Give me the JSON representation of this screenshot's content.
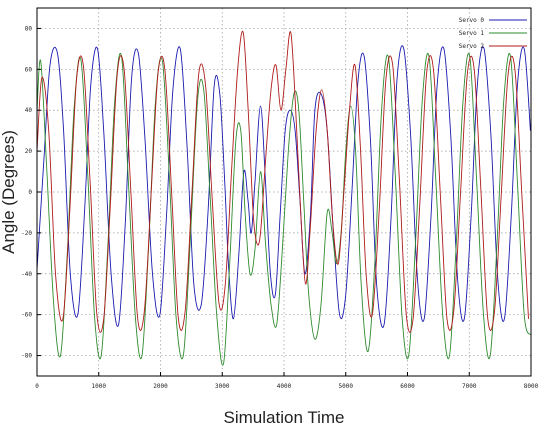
{
  "chart_data": {
    "type": "line",
    "title": "",
    "xlabel": "Simulation Time",
    "ylabel": "Angle (Degrees)",
    "xlim": [
      0,
      8000
    ],
    "ylim": [
      -90,
      90
    ],
    "x_ticks": [
      0,
      1000,
      2000,
      3000,
      4000,
      5000,
      6000,
      7000,
      8000
    ],
    "y_ticks": [
      -80,
      -60,
      -40,
      -20,
      0,
      20,
      40,
      60,
      80
    ],
    "grid": true,
    "legend_position": "top-right",
    "series": [
      {
        "name": "Servo 0",
        "color": "#1a1ab0",
        "points": [
          [
            0,
            -38
          ],
          [
            110,
            15
          ],
          [
            210,
            62
          ],
          [
            330,
            68
          ],
          [
            430,
            30
          ],
          [
            540,
            -40
          ],
          [
            660,
            -60
          ],
          [
            770,
            -10
          ],
          [
            870,
            52
          ],
          [
            980,
            70
          ],
          [
            1080,
            30
          ],
          [
            1200,
            -40
          ],
          [
            1320,
            -65
          ],
          [
            1430,
            -15
          ],
          [
            1530,
            55
          ],
          [
            1640,
            68
          ],
          [
            1750,
            25
          ],
          [
            1870,
            -40
          ],
          [
            1990,
            -60
          ],
          [
            2100,
            -10
          ],
          [
            2200,
            50
          ],
          [
            2320,
            70
          ],
          [
            2430,
            22
          ],
          [
            2540,
            -45
          ],
          [
            2660,
            -55
          ],
          [
            2770,
            -10
          ],
          [
            2870,
            52
          ],
          [
            2960,
            48
          ],
          [
            3040,
            5
          ],
          [
            3100,
            -35
          ],
          [
            3180,
            -62
          ],
          [
            3270,
            -30
          ],
          [
            3350,
            10
          ],
          [
            3420,
            -5
          ],
          [
            3470,
            -20
          ],
          [
            3530,
            5
          ],
          [
            3620,
            42
          ],
          [
            3700,
            5
          ],
          [
            3780,
            -40
          ],
          [
            3860,
            -50
          ],
          [
            3940,
            -10
          ],
          [
            4020,
            30
          ],
          [
            4100,
            40
          ],
          [
            4180,
            30
          ],
          [
            4260,
            -5
          ],
          [
            4340,
            -40
          ],
          [
            4430,
            -10
          ],
          [
            4500,
            40
          ],
          [
            4600,
            48
          ],
          [
            4700,
            30
          ],
          [
            4800,
            -20
          ],
          [
            4900,
            -60
          ],
          [
            5000,
            -50
          ],
          [
            5100,
            0
          ],
          [
            5200,
            55
          ],
          [
            5300,
            66
          ],
          [
            5400,
            25
          ],
          [
            5500,
            -45
          ],
          [
            5620,
            -65
          ],
          [
            5730,
            -15
          ],
          [
            5830,
            55
          ],
          [
            5940,
            70
          ],
          [
            6050,
            28
          ],
          [
            6160,
            -42
          ],
          [
            6270,
            -62
          ],
          [
            6380,
            -12
          ],
          [
            6480,
            52
          ],
          [
            6590,
            70
          ],
          [
            6700,
            28
          ],
          [
            6810,
            -42
          ],
          [
            6920,
            -62
          ],
          [
            7030,
            -12
          ],
          [
            7130,
            52
          ],
          [
            7240,
            70
          ],
          [
            7350,
            28
          ],
          [
            7460,
            -42
          ],
          [
            7570,
            -62
          ],
          [
            7680,
            -12
          ],
          [
            7780,
            52
          ],
          [
            7890,
            70
          ],
          [
            7990,
            30
          ]
        ]
      },
      {
        "name": "Servo 1",
        "color": "#2e8b2e",
        "points": [
          [
            0,
            40
          ],
          [
            60,
            64
          ],
          [
            160,
            10
          ],
          [
            270,
            -55
          ],
          [
            380,
            -80
          ],
          [
            490,
            -30
          ],
          [
            600,
            40
          ],
          [
            710,
            65
          ],
          [
            820,
            10
          ],
          [
            930,
            -60
          ],
          [
            1040,
            -80
          ],
          [
            1150,
            -25
          ],
          [
            1260,
            45
          ],
          [
            1370,
            66
          ],
          [
            1480,
            5
          ],
          [
            1590,
            -60
          ],
          [
            1700,
            -80
          ],
          [
            1810,
            -25
          ],
          [
            1920,
            45
          ],
          [
            2030,
            64
          ],
          [
            2140,
            10
          ],
          [
            2250,
            -60
          ],
          [
            2370,
            -80
          ],
          [
            2480,
            -25
          ],
          [
            2600,
            45
          ],
          [
            2700,
            50
          ],
          [
            2800,
            0
          ],
          [
            2910,
            -60
          ],
          [
            3020,
            -84
          ],
          [
            3120,
            -35
          ],
          [
            3220,
            25
          ],
          [
            3300,
            30
          ],
          [
            3370,
            -10
          ],
          [
            3450,
            -40
          ],
          [
            3530,
            -28
          ],
          [
            3620,
            10
          ],
          [
            3700,
            -25
          ],
          [
            3790,
            -55
          ],
          [
            3880,
            -65
          ],
          [
            3970,
            -30
          ],
          [
            4070,
            20
          ],
          [
            4160,
            48
          ],
          [
            4240,
            40
          ],
          [
            4320,
            -5
          ],
          [
            4400,
            -50
          ],
          [
            4500,
            -72
          ],
          [
            4600,
            -55
          ],
          [
            4700,
            -10
          ],
          [
            4780,
            -20
          ],
          [
            4850,
            -35
          ],
          [
            4930,
            -18
          ],
          [
            5000,
            20
          ],
          [
            5080,
            42
          ],
          [
            5160,
            20
          ],
          [
            5250,
            -45
          ],
          [
            5360,
            -78
          ],
          [
            5470,
            -35
          ],
          [
            5580,
            40
          ],
          [
            5690,
            66
          ],
          [
            5800,
            10
          ],
          [
            5910,
            -60
          ],
          [
            6020,
            -80
          ],
          [
            6130,
            -25
          ],
          [
            6240,
            45
          ],
          [
            6350,
            66
          ],
          [
            6460,
            5
          ],
          [
            6570,
            -60
          ],
          [
            6680,
            -80
          ],
          [
            6790,
            -25
          ],
          [
            6900,
            45
          ],
          [
            7010,
            66
          ],
          [
            7120,
            5
          ],
          [
            7230,
            -60
          ],
          [
            7340,
            -80
          ],
          [
            7450,
            -25
          ],
          [
            7560,
            45
          ],
          [
            7670,
            66
          ],
          [
            7780,
            5
          ],
          [
            7890,
            -60
          ],
          [
            8000,
            -70
          ]
        ]
      },
      {
        "name": "Servo 2",
        "color": "#b01a1a",
        "points": [
          [
            0,
            20
          ],
          [
            80,
            56
          ],
          [
            190,
            30
          ],
          [
            300,
            -40
          ],
          [
            420,
            -62
          ],
          [
            530,
            -10
          ],
          [
            640,
            55
          ],
          [
            750,
            62
          ],
          [
            860,
            5
          ],
          [
            970,
            -60
          ],
          [
            1080,
            -62
          ],
          [
            1190,
            -5
          ],
          [
            1300,
            58
          ],
          [
            1410,
            60
          ],
          [
            1520,
            0
          ],
          [
            1630,
            -62
          ],
          [
            1740,
            -58
          ],
          [
            1850,
            0
          ],
          [
            1960,
            58
          ],
          [
            2070,
            60
          ],
          [
            2180,
            0
          ],
          [
            2290,
            -62
          ],
          [
            2400,
            -58
          ],
          [
            2510,
            0
          ],
          [
            2620,
            58
          ],
          [
            2730,
            52
          ],
          [
            2840,
            -5
          ],
          [
            2950,
            -55
          ],
          [
            3050,
            -45
          ],
          [
            3150,
            10
          ],
          [
            3250,
            60
          ],
          [
            3340,
            78
          ],
          [
            3420,
            40
          ],
          [
            3500,
            -10
          ],
          [
            3560,
            -25
          ],
          [
            3620,
            -20
          ],
          [
            3700,
            15
          ],
          [
            3790,
            50
          ],
          [
            3870,
            62
          ],
          [
            3950,
            40
          ],
          [
            4030,
            60
          ],
          [
            4110,
            78
          ],
          [
            4190,
            40
          ],
          [
            4270,
            -10
          ],
          [
            4350,
            -45
          ],
          [
            4430,
            -15
          ],
          [
            4520,
            30
          ],
          [
            4610,
            50
          ],
          [
            4700,
            30
          ],
          [
            4790,
            -15
          ],
          [
            4880,
            -35
          ],
          [
            4970,
            0
          ],
          [
            5060,
            40
          ],
          [
            5150,
            62
          ],
          [
            5240,
            20
          ],
          [
            5330,
            -40
          ],
          [
            5430,
            -60
          ],
          [
            5540,
            -10
          ],
          [
            5650,
            55
          ],
          [
            5760,
            62
          ],
          [
            5870,
            5
          ],
          [
            5980,
            -60
          ],
          [
            6090,
            -62
          ],
          [
            6200,
            -5
          ],
          [
            6310,
            58
          ],
          [
            6420,
            60
          ],
          [
            6530,
            0
          ],
          [
            6640,
            -62
          ],
          [
            6750,
            -58
          ],
          [
            6860,
            0
          ],
          [
            6970,
            58
          ],
          [
            7080,
            60
          ],
          [
            7190,
            0
          ],
          [
            7300,
            -62
          ],
          [
            7410,
            -58
          ],
          [
            7520,
            0
          ],
          [
            7630,
            58
          ],
          [
            7740,
            60
          ],
          [
            7850,
            0
          ],
          [
            7960,
            -62
          ]
        ]
      }
    ]
  }
}
